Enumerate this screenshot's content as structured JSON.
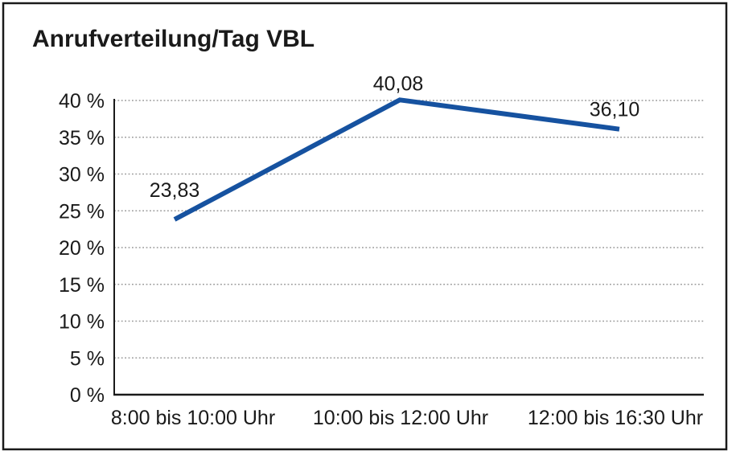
{
  "title": "Anrufverteilung/Tag VBL",
  "chart_data": {
    "type": "line",
    "title": "Anrufverteilung/Tag VBL",
    "categories": [
      "8:00 bis 10:00 Uhr",
      "10:00 bis 12:00 Uhr",
      "12:00 bis 16:30 Uhr"
    ],
    "values": [
      23.83,
      40.08,
      36.1
    ],
    "value_labels": [
      "23,83",
      "40,08",
      "36,10"
    ],
    "xlabel": "",
    "ylabel": "",
    "ylim": [
      0,
      40
    ],
    "ytick_step": 5,
    "ytick_labels": [
      "0 %",
      "5 %",
      "10 %",
      "15 %",
      "20 %",
      "25 %",
      "30 %",
      "35 %",
      "40 %"
    ],
    "grid": "horizontal-dotted",
    "legend": "none"
  },
  "colors": {
    "line": "#1652A0",
    "grid": "#999999",
    "axis": "#1a1a1a",
    "text": "#1a1a1a",
    "background": "#ffffff",
    "border": "#1a1a1a"
  }
}
